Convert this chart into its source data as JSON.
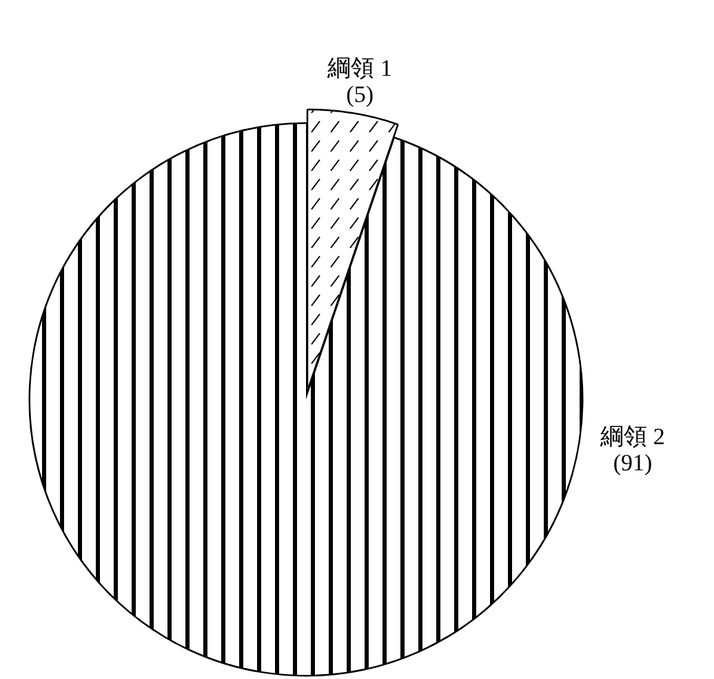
{
  "chart_data": {
    "type": "pie",
    "categories": [
      "綱領 1",
      "綱領 2"
    ],
    "values": [
      5,
      91
    ],
    "value_labels": [
      "(5)",
      "(91)"
    ],
    "colors": [
      "#ffffff",
      "#ffffff"
    ]
  }
}
